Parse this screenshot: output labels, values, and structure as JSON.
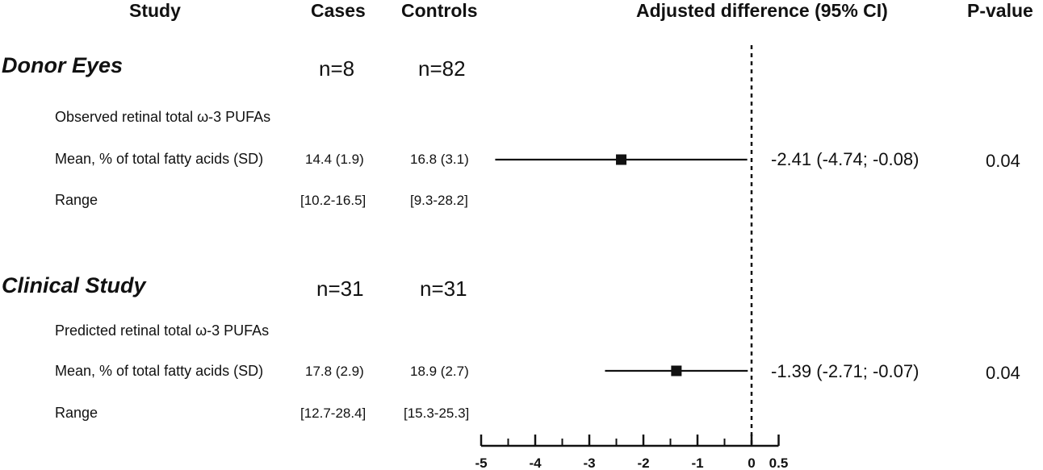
{
  "headers": {
    "study": "Study",
    "cases": "Cases",
    "controls": "Controls",
    "difference": "Adjusted difference (95% CI)",
    "pvalue": "P-value"
  },
  "sections": [
    {
      "title": "Donor Eyes",
      "cases_n": "n=8",
      "controls_n": "n=82",
      "measure": "Observed retinal total ω-3 PUFAs",
      "mean_label": "Mean, % of total fatty acids (SD)",
      "cases_mean": "14.4 (1.9)",
      "controls_mean": "16.8 (3.1)",
      "range_label": "Range",
      "cases_range": "[10.2-16.5]",
      "controls_range": "[9.3-28.2]",
      "estimate_text": "-2.41 (-4.74; -0.08)",
      "pvalue": "0.04"
    },
    {
      "title": "Clinical Study",
      "cases_n": "n=31",
      "controls_n": "n=31",
      "measure": "Predicted retinal total ω-3 PUFAs",
      "mean_label": "Mean, % of total fatty acids (SD)",
      "cases_mean": "17.8 (2.9)",
      "controls_mean": "18.9 (2.7)",
      "range_label": "Range",
      "cases_range": "[12.7-28.4]",
      "controls_range": "[15.3-25.3]",
      "estimate_text": "-1.39 (-2.71; -0.07)",
      "pvalue": "0.04"
    }
  ],
  "chart_data": {
    "type": "forest",
    "categories": [
      "Donor Eyes",
      "Clinical Study"
    ],
    "estimates": [
      -2.41,
      -1.39
    ],
    "ci_lower": [
      -4.74,
      -2.71
    ],
    "ci_upper": [
      -0.08,
      -0.07
    ],
    "xlim": [
      -5,
      0.5
    ],
    "reference_line": 0,
    "major_ticks": [
      -5,
      -4,
      -3,
      -2,
      -1,
      0,
      0.5
    ],
    "tick_labels": [
      "-5",
      "-4",
      "-3",
      "-2",
      "-1",
      "0",
      "0.5"
    ],
    "minor_tick_step": 0.5,
    "marker": "square",
    "color": "#111111"
  }
}
